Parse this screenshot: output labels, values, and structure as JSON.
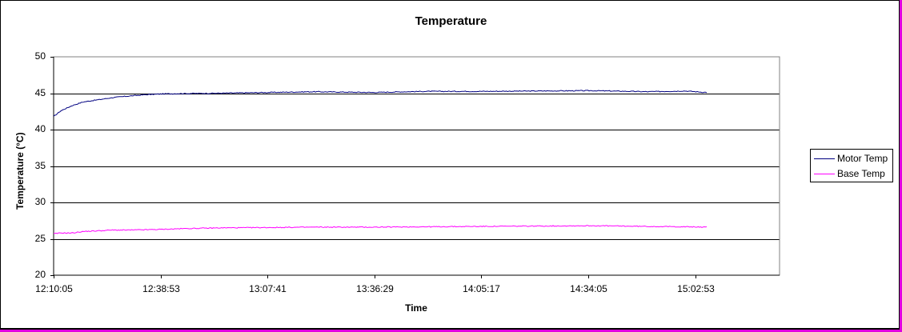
{
  "chart_data": {
    "type": "line",
    "title": "Temperature",
    "xlabel": "Time",
    "ylabel": "Temperature (°C)",
    "ylim": [
      20,
      50
    ],
    "yticks": [
      "50",
      "45",
      "40",
      "35",
      "30",
      "25",
      "20"
    ],
    "xticks": [
      "12:10:05",
      "12:38:53",
      "13:07:41",
      "13:36:29",
      "14:05:17",
      "14:34:05",
      "15:02:53"
    ],
    "x_minutes_from_start": [
      0,
      2,
      5,
      8,
      12,
      16,
      20,
      25,
      29,
      35,
      45,
      58,
      70,
      86,
      100,
      115,
      130,
      145,
      160,
      170,
      176
    ],
    "x_time_labels": [
      "12:10:05",
      "12:12:05",
      "12:15:05",
      "12:18:05",
      "12:22:05",
      "12:26:05",
      "12:30:05",
      "12:35:05",
      "12:39:05",
      "12:45:05",
      "12:55:05",
      "13:08:05",
      "13:20:05",
      "13:36:05",
      "13:50:05",
      "14:05:05",
      "14:20:05",
      "14:35:05",
      "14:50:05",
      "15:00:05",
      "15:06:05"
    ],
    "grid": "horizontal major gridlines",
    "legend_position": "right",
    "series": [
      {
        "name": "Motor Temp",
        "color": "#000080",
        "values": [
          41.8,
          42.6,
          43.3,
          43.8,
          44.1,
          44.4,
          44.6,
          44.8,
          44.9,
          44.95,
          45.0,
          45.1,
          45.2,
          45.1,
          45.25,
          45.25,
          45.3,
          45.35,
          45.2,
          45.3,
          45.1
        ]
      },
      {
        "name": "Base Temp",
        "color": "#ff00ff",
        "values": [
          25.7,
          25.8,
          25.8,
          26.0,
          26.1,
          26.2,
          26.2,
          26.25,
          26.3,
          26.4,
          26.5,
          26.55,
          26.6,
          26.6,
          26.65,
          26.7,
          26.75,
          26.8,
          26.7,
          26.65,
          26.6
        ]
      }
    ]
  },
  "legend": {
    "items": [
      {
        "label": "Motor Temp",
        "color": "#000080"
      },
      {
        "label": "Base Temp",
        "color": "#ff00ff"
      }
    ]
  }
}
